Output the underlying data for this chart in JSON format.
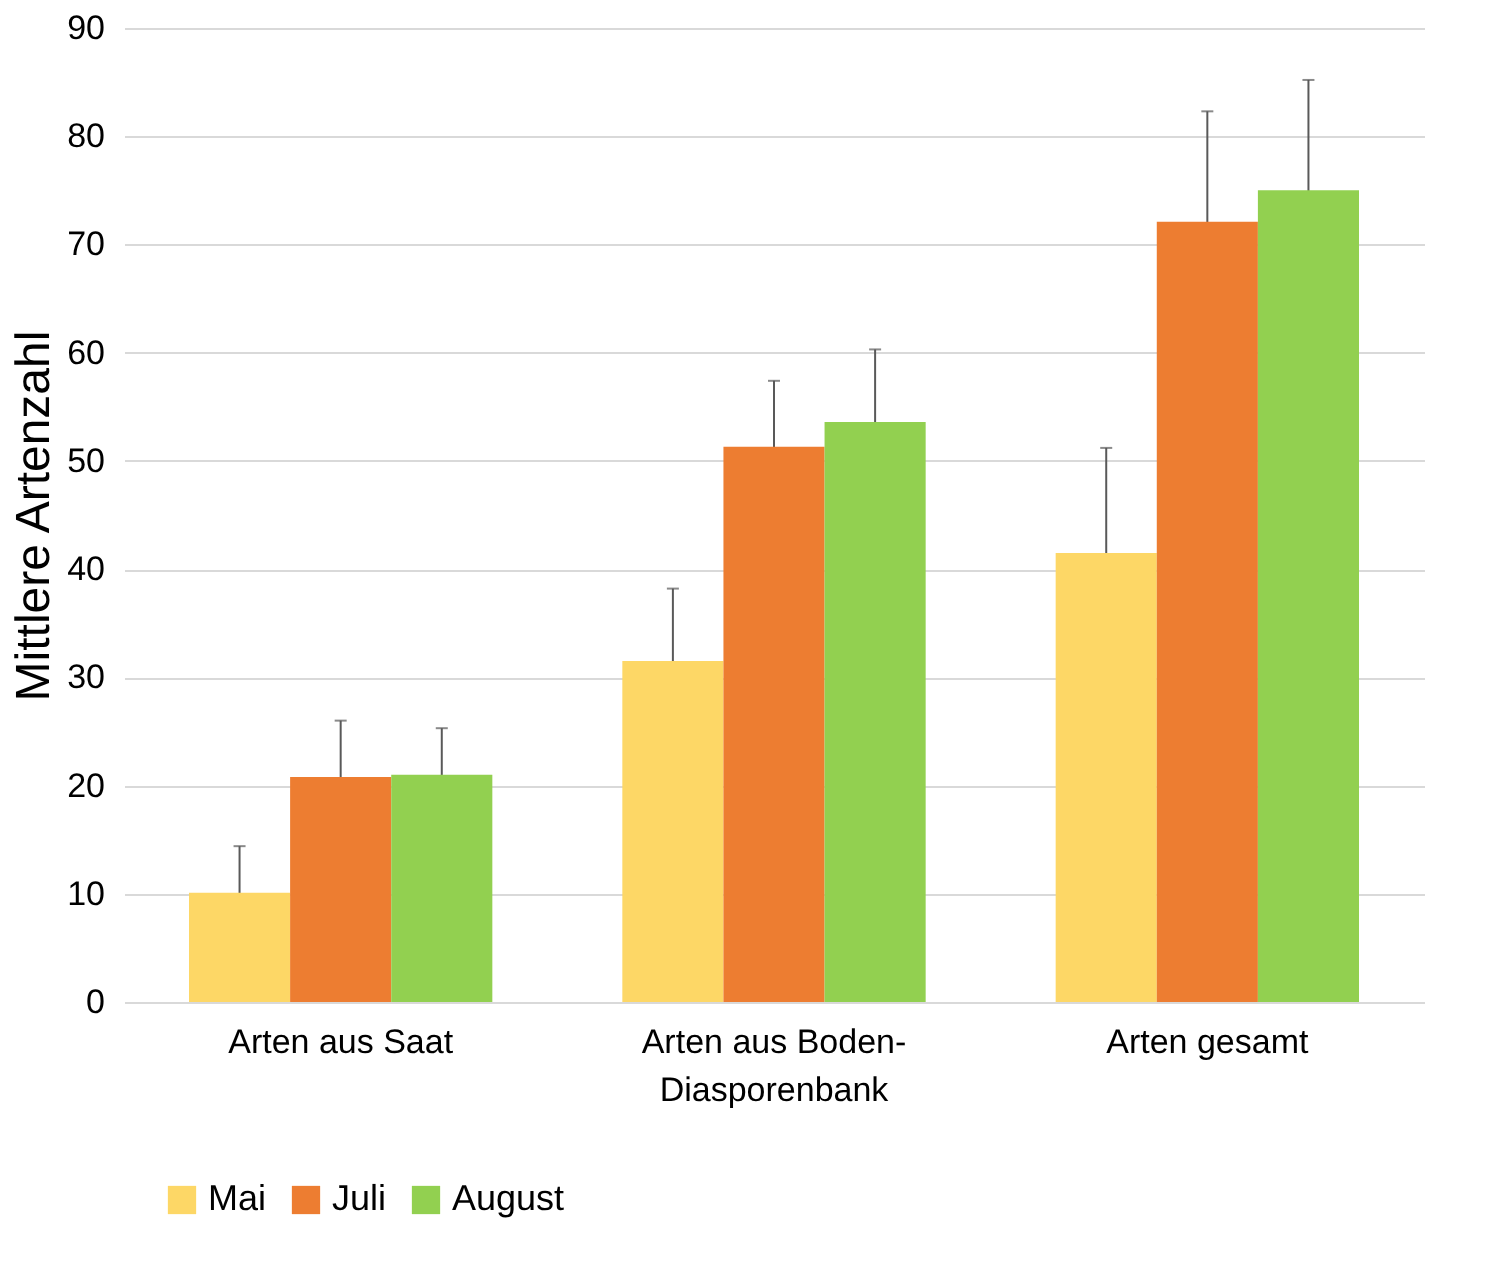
{
  "chart_data": {
    "type": "bar",
    "ylabel": "Mittlere Artenzahl",
    "categories": [
      "Arten aus Saat",
      "Arten aus Boden-\nDiasporenbank",
      "Arten gesamt"
    ],
    "series": [
      {
        "name": "Mai",
        "color": "#fdd766",
        "values": [
          10.1,
          31.5,
          41.5
        ],
        "errors": [
          4.3,
          6.7,
          9.7
        ]
      },
      {
        "name": "Juli",
        "color": "#ed7d31",
        "values": [
          20.8,
          51.3,
          72.1
        ],
        "errors": [
          5.2,
          6.1,
          10.2
        ]
      },
      {
        "name": "August",
        "color": "#92d050",
        "values": [
          21.0,
          53.6,
          75.0
        ],
        "errors": [
          4.3,
          6.7,
          10.2
        ]
      }
    ],
    "ylim": [
      0,
      90
    ],
    "yticks": [
      0,
      10,
      20,
      30,
      40,
      50,
      60,
      70,
      80,
      90
    ],
    "grid": "y",
    "legend": "bottom"
  }
}
